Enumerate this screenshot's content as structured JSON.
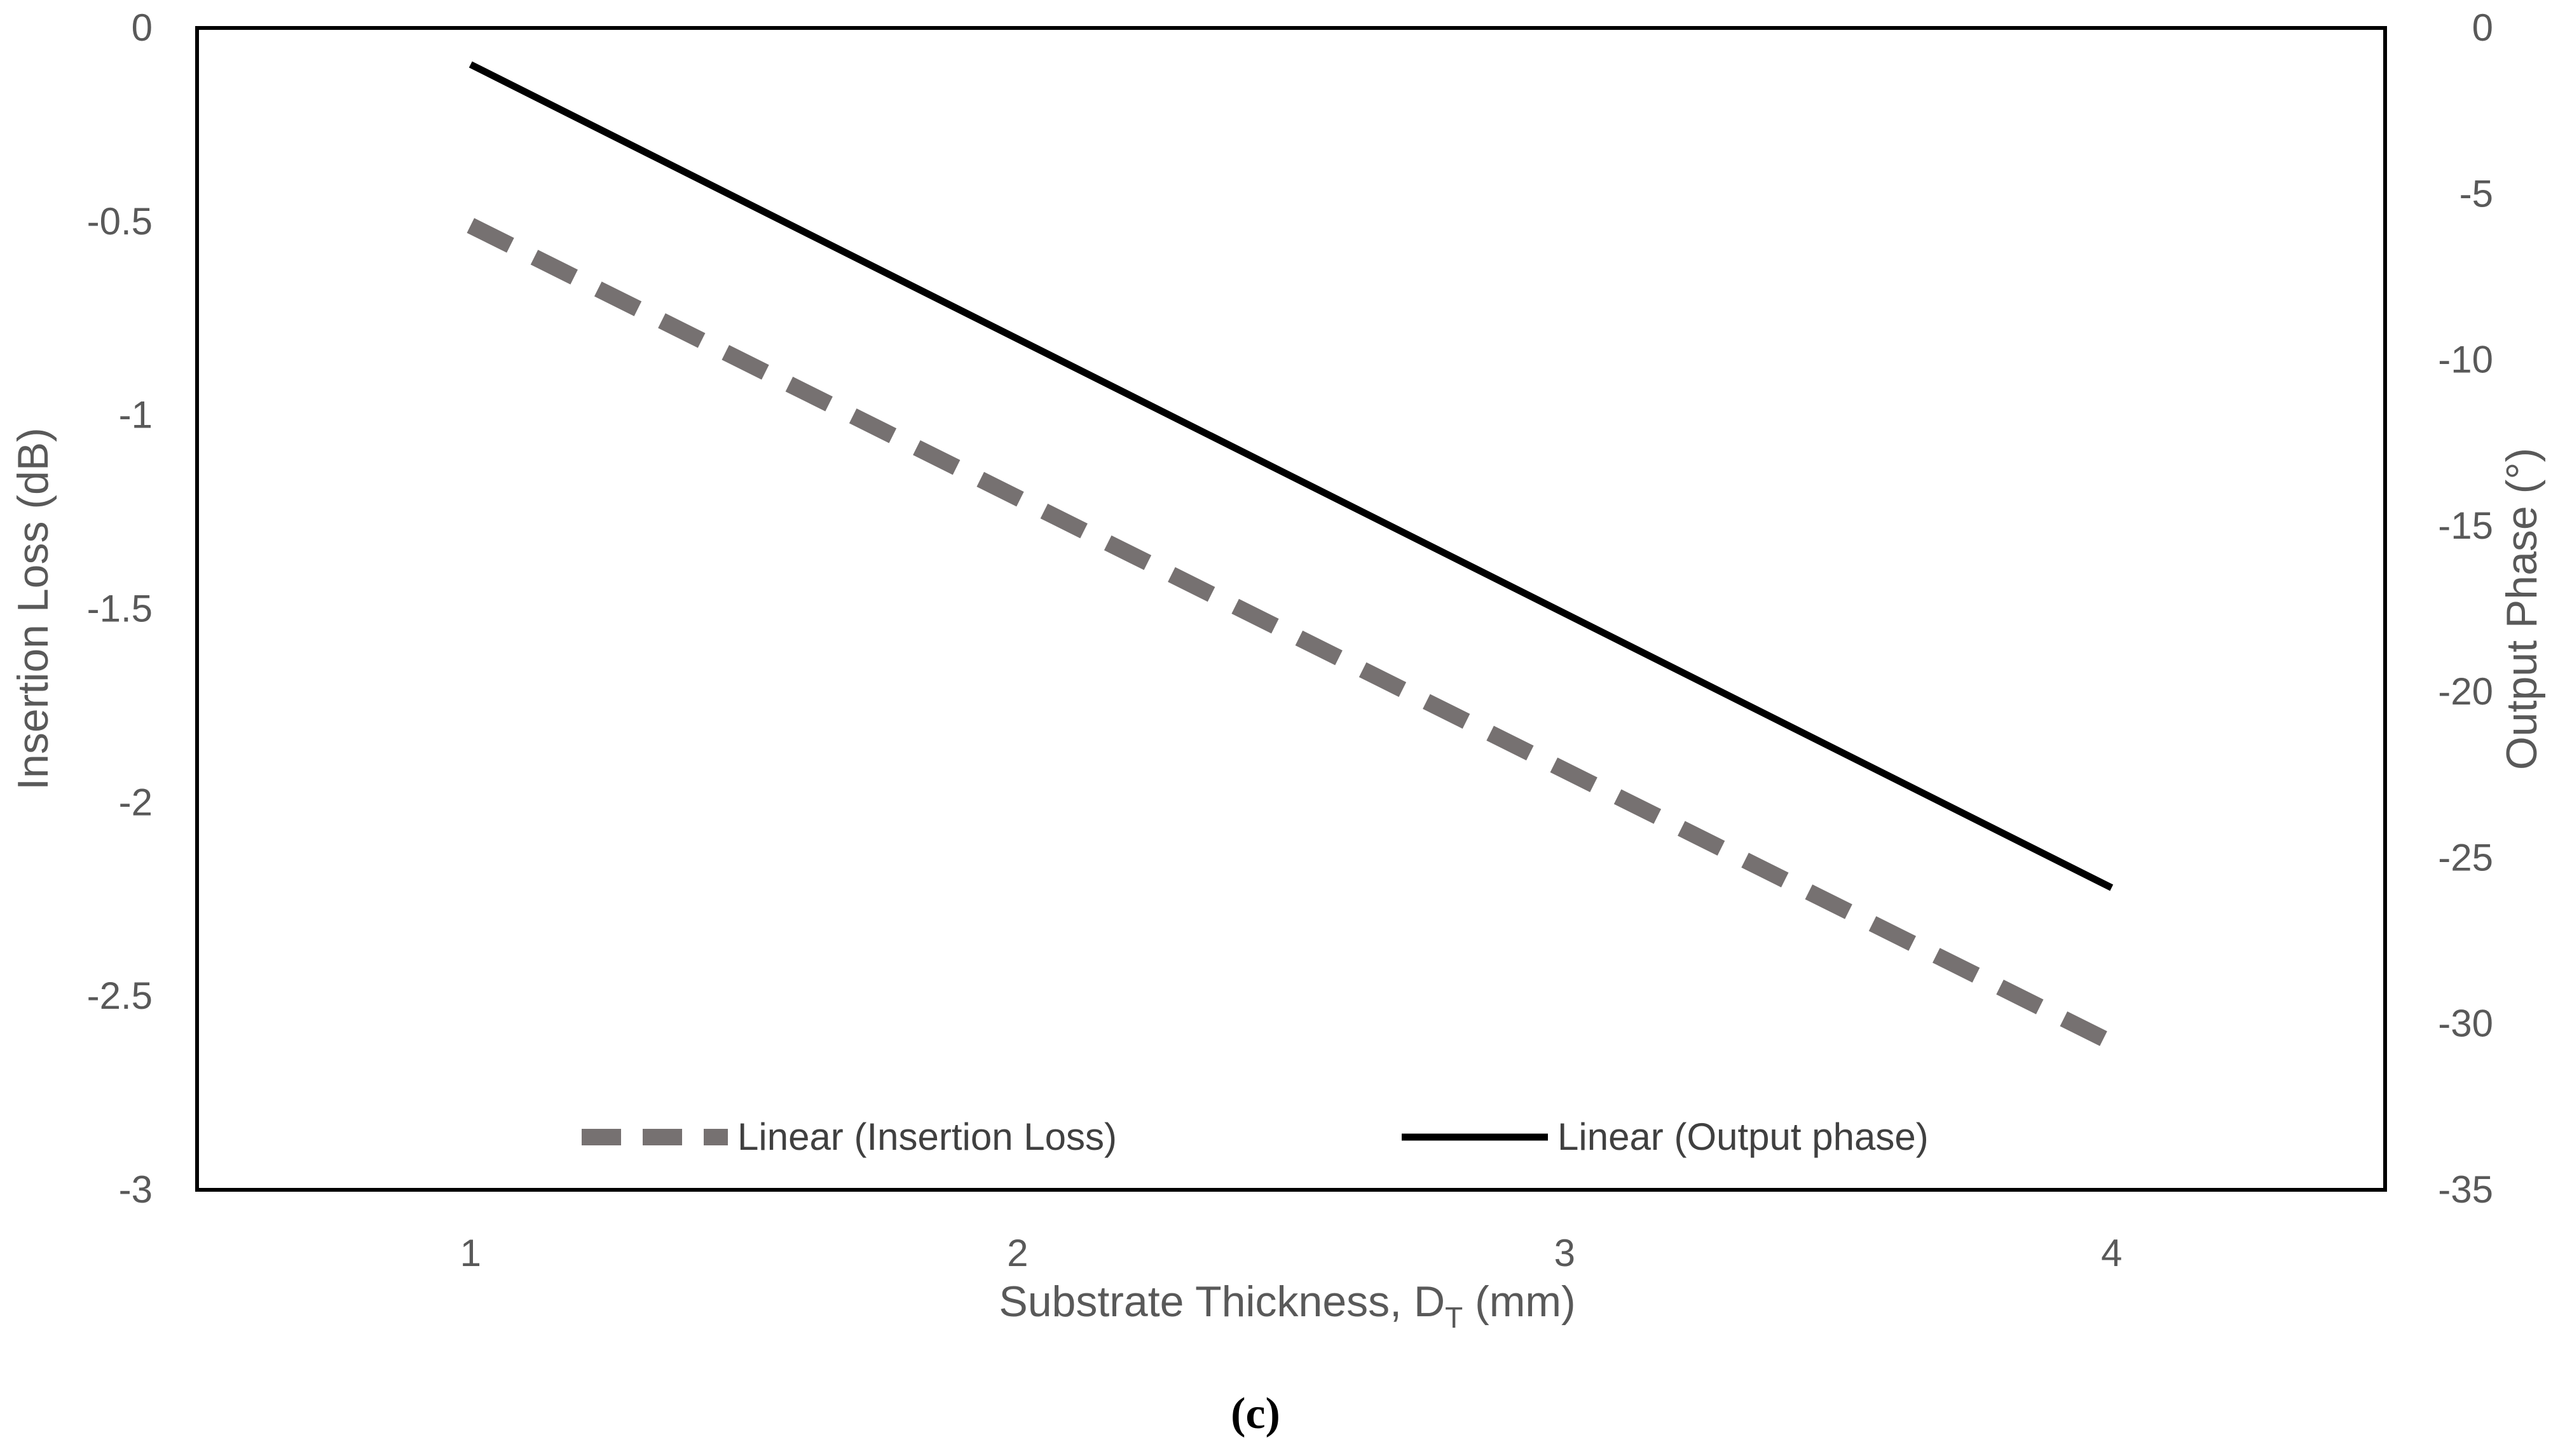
{
  "chart_data": {
    "type": "line",
    "x": [
      1,
      2,
      3,
      4
    ],
    "xlim": [
      0.5,
      4.5
    ],
    "x_ticks": [
      "1",
      "2",
      "3",
      "4"
    ],
    "xlabel": {
      "main": "Substrate Thickness, D",
      "subscript": "T",
      "suffix": " (mm)"
    },
    "ylabel_left": "Insertion Loss (dB)",
    "ylim_left": [
      -3,
      0
    ],
    "y_ticks_left": [
      "0",
      "-0.5",
      "-1",
      "-1.5",
      "-2",
      "-2.5",
      "-3"
    ],
    "ylabel_right": "Output Phase (°)",
    "ylim_right": [
      -35,
      0
    ],
    "y_ticks_right": [
      "0",
      "-5",
      "-10",
      "-15",
      "-20",
      "-25",
      "-30",
      "-35"
    ],
    "grid": false,
    "legend_position": "bottom-inside",
    "series": [
      {
        "name": "Linear (Insertion Loss)",
        "axis": "left",
        "style": "dashed",
        "color": "#767171",
        "x": [
          1,
          4
        ],
        "values": [
          -0.51,
          -2.62
        ]
      },
      {
        "name": "Linear (Output phase)",
        "axis": "right",
        "style": "solid",
        "color": "#000000",
        "x": [
          1,
          4
        ],
        "values": [
          -1.1,
          -25.9
        ]
      }
    ]
  },
  "caption": "(c)"
}
